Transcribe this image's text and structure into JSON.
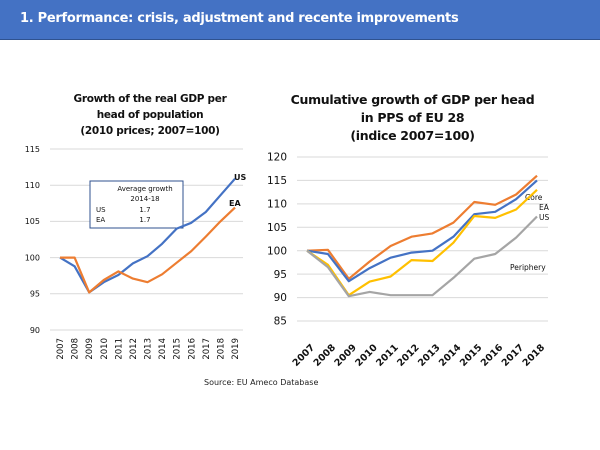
{
  "header": {
    "title": "1. Performance: crisis, adjustment and recente improvements",
    "bg_color": "#4472C4"
  },
  "source": "Source: EU Ameco Database",
  "chart_data": [
    {
      "type": "line",
      "title_lines": [
        "Growth of the real GDP per",
        "head of population",
        "(2010 prices;  2007=100)"
      ],
      "x": [
        "2007",
        "2008",
        "2009",
        "2010",
        "2011",
        "2012",
        "2013",
        "2014",
        "2015",
        "2016",
        "2017",
        "2018",
        "2019"
      ],
      "ylim": [
        90,
        115
      ],
      "yticks": [
        90,
        95,
        100,
        105,
        110,
        115
      ],
      "grid": true,
      "series": [
        {
          "name": "US",
          "color": "#4472C4",
          "values": [
            100,
            98.8,
            95.2,
            96.6,
            97.6,
            99.2,
            100.2,
            101.9,
            104.0,
            104.8,
            106.3,
            108.6,
            110.9
          ]
        },
        {
          "name": "EA",
          "color": "#ED7D31",
          "values": [
            100,
            100,
            95.2,
            96.9,
            98.1,
            97.1,
            96.6,
            97.7,
            99.3,
            100.9,
            102.9,
            105.0,
            106.9
          ]
        }
      ],
      "annotation_box": {
        "title_lines": [
          "Average growth",
          "2014-18"
        ],
        "rows": [
          {
            "label": "US",
            "value": "1.7"
          },
          {
            "label": "EA",
            "value": "1.7"
          }
        ]
      },
      "xlabel": "",
      "ylabel": ""
    },
    {
      "type": "line",
      "title_lines": [
        "Cumulative growth of GDP per head",
        "in PPS of EU 28",
        "(indice 2007=100)"
      ],
      "x": [
        "2007",
        "2008",
        "2009",
        "2010",
        "2011",
        "2012",
        "2013",
        "2014",
        "2015",
        "2016",
        "2017",
        "2018"
      ],
      "ylim": [
        85,
        120
      ],
      "yticks": [
        85,
        90,
        95,
        100,
        105,
        110,
        115,
        120
      ],
      "grid": true,
      "series": [
        {
          "name": "Core",
          "color": "#ED7D31",
          "values": [
            100,
            100.2,
            94.0,
            97.7,
            101.0,
            103.0,
            103.7,
            106.0,
            110.4,
            109.8,
            112.0,
            116.0
          ]
        },
        {
          "name": "EA",
          "color": "#4472C4",
          "values": [
            100,
            99.3,
            93.5,
            96.3,
            98.5,
            99.6,
            100.0,
            103.0,
            107.8,
            108.3,
            111.0,
            115.0
          ]
        },
        {
          "name": "US",
          "color": "#FFC000",
          "values": [
            100,
            97.0,
            90.5,
            93.4,
            94.5,
            98.0,
            97.8,
            101.7,
            107.4,
            107.0,
            108.8,
            113.0
          ]
        },
        {
          "name": "Periphery",
          "color": "#A5A5A5",
          "values": [
            100,
            96.5,
            90.3,
            91.2,
            90.5,
            90.5,
            90.5,
            94.2,
            98.3,
            99.3,
            102.8,
            107.3
          ]
        }
      ],
      "xlabel": "",
      "ylabel": ""
    }
  ]
}
